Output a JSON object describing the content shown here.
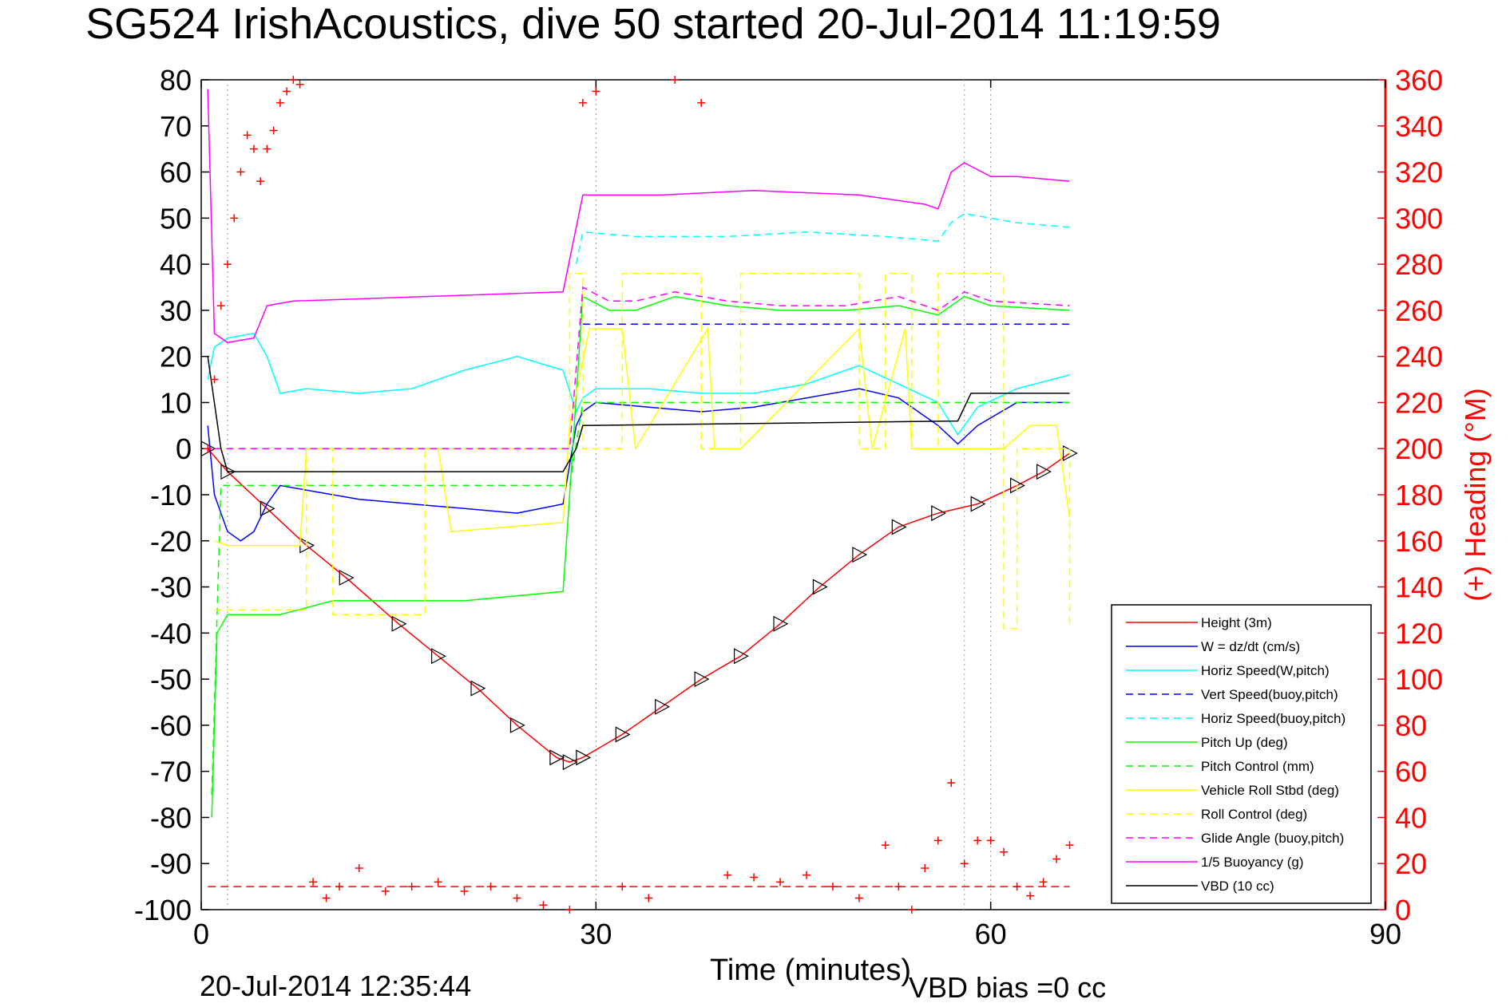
{
  "title": "SG524 IrishAcoustics, dive 50 started 20-Jul-2014 11:19:59",
  "footer": {
    "timestamp": "20-Jul-2014 12:35:44",
    "vbd_bias": "VBD bias =0 cc"
  },
  "chart_data": {
    "type": "line",
    "title": "SG524 IrishAcoustics, dive 50 started 20-Jul-2014 11:19:59",
    "xlabel": "Time (minutes)",
    "ylabel": "",
    "y2label": "(+) Heading (°M)",
    "xlim": [
      0,
      90
    ],
    "ylim": [
      -100,
      80
    ],
    "y2lim": [
      0,
      360
    ],
    "xticks": [
      "0",
      "30",
      "60",
      "90"
    ],
    "yticks": [
      "80",
      "70",
      "60",
      "50",
      "40",
      "30",
      "20",
      "10",
      "0",
      "-10",
      "-20",
      "-30",
      "-40",
      "-50",
      "-60",
      "-70",
      "-80",
      "-90",
      "-100"
    ],
    "y2ticks": [
      "360",
      "340",
      "320",
      "300",
      "280",
      "260",
      "240",
      "220",
      "200",
      "180",
      "160",
      "140",
      "120",
      "100",
      "80",
      "60",
      "40",
      "20",
      "0"
    ],
    "grid": true,
    "legend_position": "bottom-right",
    "colors": {
      "axis": "#000000",
      "right_axis": "#ff0000",
      "grid": "#9a9a9a"
    },
    "series": [
      {
        "name": "Height (3m)",
        "color": "#ff0000",
        "dash": false,
        "markers": "triangle",
        "x": [
          0.5,
          2,
          5,
          8,
          11,
          15,
          18,
          21,
          24,
          27,
          28,
          29,
          32,
          35,
          38,
          41,
          44,
          47,
          50,
          53,
          56,
          59,
          62,
          64,
          66
        ],
        "y": [
          0,
          -5,
          -13,
          -21,
          -28,
          -38,
          -45,
          -52,
          -60,
          -67,
          -68,
          -67,
          -62,
          -56,
          -50,
          -45,
          -38,
          -30,
          -23,
          -17,
          -14,
          -12,
          -8,
          -5,
          -1
        ]
      },
      {
        "name": "W = dz/dt (cm/s)",
        "color": "#0000ff",
        "dash": false,
        "markers": "none",
        "x": [
          0.5,
          1,
          2,
          3,
          4,
          5,
          6,
          8,
          12,
          16,
          20,
          24,
          27.5,
          28.5,
          29,
          30,
          34,
          38,
          42,
          46,
          50,
          53,
          56,
          57.5,
          59,
          62,
          66
        ],
        "y": [
          5,
          -10,
          -18,
          -20,
          -18,
          -12,
          -8,
          -9,
          -11,
          -12,
          -13,
          -14,
          -12,
          5,
          8,
          10,
          9,
          8,
          9,
          11,
          13,
          11,
          5,
          1,
          5,
          10,
          10
        ]
      },
      {
        "name": "Horiz Speed(W,pitch)",
        "color": "#00ffff",
        "dash": false,
        "markers": "none",
        "x": [
          0.5,
          1,
          2,
          4,
          5,
          6,
          8,
          12,
          16,
          20,
          24,
          27.5,
          28.5,
          29,
          30,
          34,
          38,
          42,
          46,
          50,
          53,
          56,
          57.5,
          59,
          62,
          66
        ],
        "y": [
          15,
          22,
          24,
          25,
          20,
          12,
          13,
          12,
          13,
          17,
          20,
          17,
          8,
          11,
          13,
          13,
          12,
          12,
          14,
          18,
          14,
          10,
          3,
          9,
          13,
          16
        ]
      },
      {
        "name": "Vert Speed(buoy,pitch)",
        "color": "#0000ff",
        "dash": true,
        "markers": "none",
        "x": [
          29,
          66
        ],
        "y": [
          27,
          27
        ]
      },
      {
        "name": "Horiz Speed(buoy,pitch)",
        "color": "#00ffff",
        "dash": true,
        "markers": "none",
        "x": [
          28.5,
          29,
          33,
          40,
          46,
          52,
          56,
          57,
          58,
          62,
          66
        ],
        "y": [
          40,
          47,
          46,
          46,
          47,
          46,
          45,
          49,
          51,
          49,
          48
        ]
      },
      {
        "name": "Pitch Up (deg)",
        "color": "#00ff00",
        "dash": false,
        "markers": "none",
        "x": [
          0.8,
          1.2,
          2,
          6,
          10,
          20,
          27.5,
          28,
          29,
          31,
          33,
          36,
          40,
          44,
          49,
          53,
          56,
          58,
          60,
          66
        ],
        "y": [
          -80,
          -40,
          -36,
          -36,
          -33,
          -33,
          -31,
          -10,
          33,
          30,
          30,
          33,
          31,
          30,
          30,
          31,
          29,
          33,
          31,
          30
        ]
      },
      {
        "name": "Pitch Control (mm)",
        "color": "#00ff00",
        "dash": true,
        "markers": "none",
        "x": [
          0.8,
          1.5,
          28,
          29,
          66
        ],
        "y": [
          -75,
          -8,
          -8,
          10,
          10
        ]
      },
      {
        "name": "Vehicle Roll Stbd (deg)",
        "color": "#ffff00",
        "dash": false,
        "markers": "none",
        "x": [
          1,
          2,
          7.5,
          8,
          18,
          19,
          27.5,
          28,
          29.5,
          32,
          33,
          38.5,
          39,
          41,
          50,
          51,
          53.5,
          54,
          56,
          61,
          63,
          65,
          66
        ],
        "y": [
          -20,
          -21,
          -21,
          0,
          0,
          -18,
          -16,
          5,
          26,
          26,
          0,
          26,
          0,
          0,
          26,
          0,
          26,
          0,
          0,
          0,
          5,
          5,
          -15
        ]
      },
      {
        "name": "Roll Control (deg)",
        "color": "#ffff00",
        "dash": true,
        "markers": "none",
        "x": [
          1,
          8,
          8,
          10,
          10,
          17,
          17,
          28,
          28,
          29,
          29,
          32,
          32,
          38,
          38,
          41,
          41,
          50,
          50,
          52,
          52,
          54,
          54,
          56,
          56,
          61,
          61,
          62,
          62,
          66,
          66
        ],
        "y": [
          -35,
          -35,
          0,
          0,
          -36,
          -36,
          0,
          0,
          38,
          38,
          0,
          0,
          38,
          38,
          0,
          0,
          38,
          38,
          0,
          0,
          38,
          38,
          0,
          0,
          38,
          38,
          -39,
          -39,
          0,
          0,
          -39
        ]
      },
      {
        "name": "Glide Angle (buoy,pitch)",
        "color": "#ff00ff",
        "dash": true,
        "markers": "none",
        "x": [
          1,
          28,
          29,
          31,
          33,
          36,
          40,
          44,
          49,
          53,
          56,
          58,
          60,
          66
        ],
        "y": [
          0,
          0,
          35,
          32,
          32,
          34,
          32,
          31,
          31,
          33,
          30,
          34,
          32,
          31
        ]
      },
      {
        "name": "1/5 Buoyancy (g)",
        "color": "#ff00ff",
        "dash": false,
        "markers": "none",
        "x": [
          0.5,
          1,
          2,
          4,
          5,
          7,
          27.5,
          29,
          35,
          42,
          50,
          55,
          56,
          57,
          58,
          60,
          62,
          66
        ],
        "y": [
          78,
          25,
          23,
          24,
          31,
          32,
          34,
          55,
          55,
          56,
          55,
          53,
          52,
          60,
          62,
          59,
          59,
          58
        ]
      },
      {
        "name": "VBD (10 cc)",
        "color": "#000000",
        "dash": false,
        "markers": "none",
        "x": [
          0.5,
          1.5,
          2,
          27.5,
          28.5,
          29,
          57.5,
          58.5,
          66
        ],
        "y": [
          20,
          0,
          -5,
          -5,
          0,
          5,
          6,
          12,
          12
        ]
      }
    ],
    "heading_series": {
      "axis": "right",
      "color": "#ff0000",
      "marker": "plus",
      "x": [
        0.5,
        1,
        1.5,
        2,
        2.5,
        3,
        3.5,
        4,
        4.5,
        5,
        5.5,
        6,
        6.5,
        7,
        7.5,
        8.5,
        9.5,
        10.5,
        12,
        14,
        16,
        18,
        20,
        22,
        24,
        26,
        28,
        29,
        30,
        32,
        34,
        36,
        38,
        40,
        42,
        44,
        46,
        48,
        50,
        52,
        53,
        54,
        55,
        56,
        57,
        58,
        59,
        60,
        61,
        62,
        63,
        64,
        65,
        66
      ],
      "y": [
        200,
        230,
        262,
        280,
        300,
        320,
        336,
        330,
        316,
        330,
        338,
        350,
        355,
        360,
        358,
        12,
        5,
        10,
        18,
        8,
        10,
        12,
        8,
        10,
        5,
        2,
        0,
        350,
        355,
        10,
        5,
        360,
        350,
        15,
        14,
        12,
        15,
        10,
        5,
        28,
        10,
        0,
        18,
        30,
        55,
        20,
        30,
        30,
        25,
        10,
        6,
        12,
        22,
        28
      ]
    },
    "reference_line": {
      "color": "#ff0000",
      "dash": true,
      "y_right": 10,
      "x": [
        0.5,
        66
      ]
    }
  }
}
